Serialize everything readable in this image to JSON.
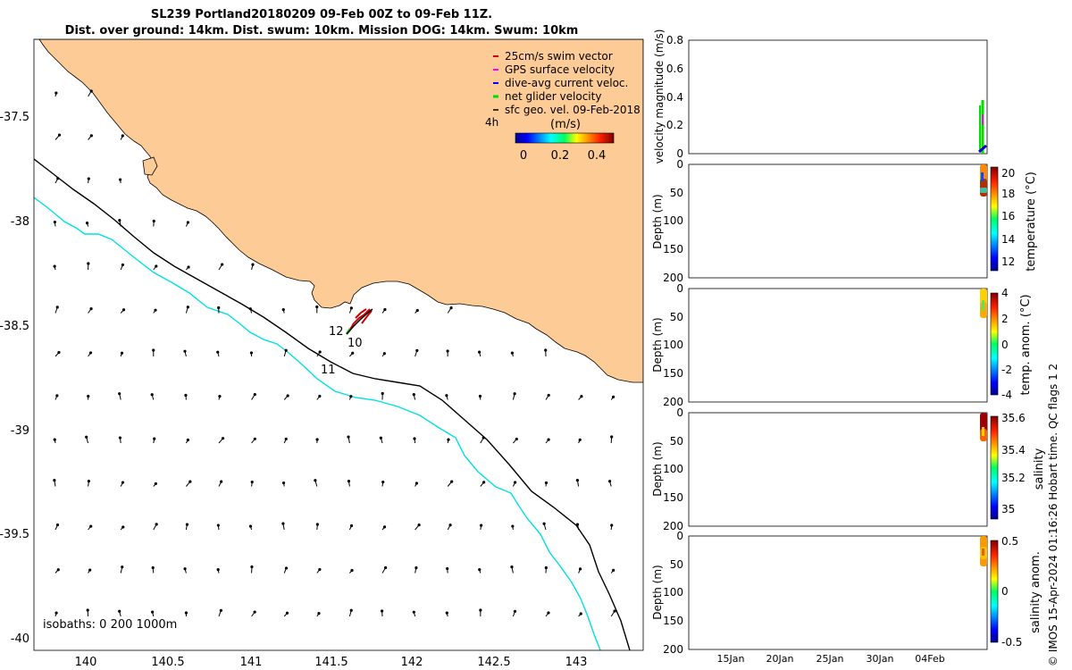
{
  "title": {
    "line1": "SL239 Portland20180209 09-Feb 00Z to 09-Feb 11Z.",
    "line2": "Dist. over ground: 14km. Dist. swum: 10km. Mission DOG: 14km. Swum: 10km"
  },
  "map": {
    "lon_ticks": [
      "140",
      "140.5",
      "141",
      "141.5",
      "142",
      "142.5",
      "143"
    ],
    "lat_ticks": [
      "-37.5",
      "-38",
      "-38.5",
      "-39",
      "-39.5",
      "-40"
    ],
    "isobaths_label": "isobaths: 0   200  1000m",
    "track_labels": [
      "12",
      "10",
      "11"
    ],
    "legend": {
      "items": [
        {
          "label": "25cm/s swim vector",
          "color": "#d00000"
        },
        {
          "label": "GPS surface velocity",
          "color": "#ff00ff"
        },
        {
          "label": "dive-avg current veloc.",
          "color": "#0000ff"
        },
        {
          "label": "net glider velocity",
          "color": "#00dd00"
        },
        {
          "label": "sfc geo. vel. 09-Feb-2018",
          "color": "#000000"
        }
      ],
      "tag": "4h",
      "colorbar_unit": "(m/s)",
      "colorbar_ticks": [
        "0",
        "0.2",
        "0.4"
      ]
    },
    "colors": {
      "land": "#fccb96",
      "sea": "#ffffff",
      "isobath_200": "#000000",
      "isobath_1000": "#00e0e0"
    }
  },
  "panels": [
    {
      "ylabel": "velocity magnitude (m/s)",
      "yticks": [
        "0.8",
        "0.6",
        "0.4",
        "0.2",
        "0"
      ]
    },
    {
      "ylabel": "Depth (m)",
      "yticks": [
        "0",
        "50",
        "100",
        "150",
        "200"
      ],
      "cbar_label": "temperature (°C)",
      "cbar_ticks": [
        "20",
        "18",
        "16",
        "14",
        "12"
      ]
    },
    {
      "ylabel": "Depth (m)",
      "yticks": [
        "0",
        "50",
        "100",
        "150",
        "200"
      ],
      "cbar_label": "temp. anom. (°C)",
      "cbar_ticks": [
        "4",
        "2",
        "0",
        "-2",
        "-4"
      ]
    },
    {
      "ylabel": "Depth (m)",
      "yticks": [
        "0",
        "50",
        "100",
        "150",
        "200"
      ],
      "cbar_label": "salinity",
      "cbar_ticks": [
        "35.6",
        "35.4",
        "35.2",
        "35"
      ]
    },
    {
      "ylabel": "Depth (m)",
      "yticks": [
        "0",
        "50",
        "100",
        "150",
        "200"
      ],
      "cbar_label": "salinity anom.",
      "cbar_ticks": [
        "0.5",
        "0",
        "-0.5"
      ]
    }
  ],
  "time_ticks": [
    "15Jan",
    "20Jan",
    "25Jan",
    "30Jan",
    "04Feb"
  ],
  "stamp": "© IMOS 15-Apr-2024 01:16:26 Hobart time. QC flags 1  2"
}
